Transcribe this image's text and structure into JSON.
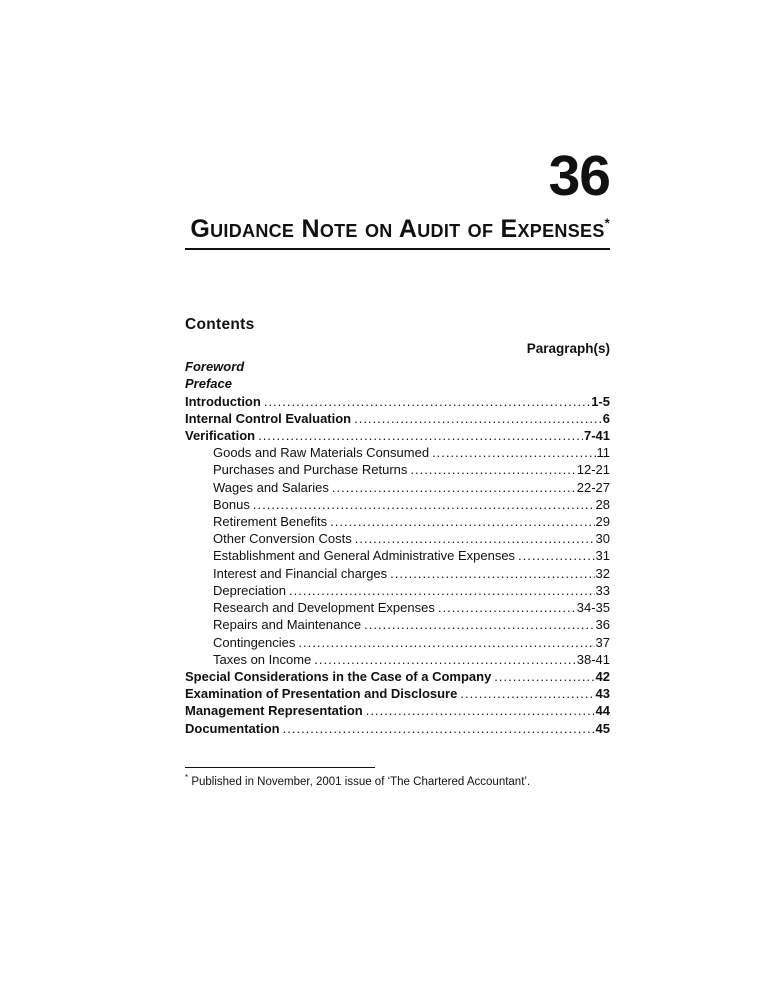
{
  "page_bg": "#ffffff",
  "text_color": "#111111",
  "chapter": {
    "number": "36"
  },
  "title": {
    "text": "Guidance Note on Audit of Expenses",
    "footnote_marker": "*"
  },
  "contents": {
    "heading": "Contents",
    "column_label": "Paragraph(s)",
    "front_items": [
      {
        "label": "Foreword"
      },
      {
        "label": "Preface"
      }
    ],
    "entries": [
      {
        "label": "Introduction",
        "paragraphs": "1-5",
        "style": "main"
      },
      {
        "label": "Internal Control Evaluation",
        "paragraphs": "6",
        "style": "main"
      },
      {
        "label": "Verification",
        "paragraphs": "7-41",
        "style": "main"
      },
      {
        "label": "Goods and Raw Materials Consumed",
        "paragraphs": "11",
        "style": "sub"
      },
      {
        "label": "Purchases and Purchase Returns",
        "paragraphs": "12-21",
        "style": "sub"
      },
      {
        "label": "Wages and Salaries",
        "paragraphs": "22-27",
        "style": "sub"
      },
      {
        "label": "Bonus",
        "paragraphs": "28",
        "style": "sub"
      },
      {
        "label": "Retirement Benefits",
        "paragraphs": "29",
        "style": "sub"
      },
      {
        "label": "Other Conversion Costs",
        "paragraphs": "30",
        "style": "sub"
      },
      {
        "label": "Establishment and General Administrative Expenses",
        "paragraphs": "31",
        "style": "sub"
      },
      {
        "label": "Interest and Financial charges",
        "paragraphs": "32",
        "style": "sub"
      },
      {
        "label": "Depreciation",
        "paragraphs": "33",
        "style": "sub"
      },
      {
        "label": "Research and Development Expenses",
        "paragraphs": "34-35",
        "style": "sub"
      },
      {
        "label": "Repairs and Maintenance",
        "paragraphs": "36",
        "style": "sub"
      },
      {
        "label": "Contingencies",
        "paragraphs": "37",
        "style": "sub"
      },
      {
        "label": "Taxes on Income",
        "paragraphs": "38-41",
        "style": "sub"
      },
      {
        "label": "Special Considerations in the Case of a Company",
        "paragraphs": "42",
        "style": "main"
      },
      {
        "label": "Examination of Presentation and Disclosure",
        "paragraphs": "43",
        "style": "main"
      },
      {
        "label": "Management Representation",
        "paragraphs": "44",
        "style": "main"
      },
      {
        "label": "Documentation",
        "paragraphs": "45",
        "style": "main"
      }
    ]
  },
  "footnote": {
    "marker": "*",
    "text": "Published in November, 2001 issue of ‘The Chartered Accountant’."
  }
}
